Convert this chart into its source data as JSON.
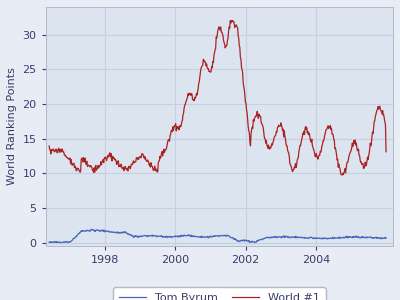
{
  "title": "",
  "ylabel": "World Ranking Points",
  "xlabel": "",
  "plot_bg_color": "#dce4f0",
  "fig_bg_color": "#e8edf5",
  "legend_bg_color": "#ffffff",
  "grid_color": "#c8d0e0",
  "tom_byrum_color": "#4466bb",
  "world1_color": "#aa2222",
  "legend_labels": [
    "Tom Byrum",
    "World #1"
  ],
  "xlim_start": 1996.3,
  "xlim_end": 2006.2,
  "ylim": [
    -0.5,
    34
  ],
  "xticks": [
    1998,
    2000,
    2002,
    2004
  ],
  "yticks": [
    0,
    5,
    10,
    15,
    20,
    25,
    30
  ],
  "ylabel_fontsize": 8,
  "tick_fontsize": 8,
  "legend_fontsize": 8
}
